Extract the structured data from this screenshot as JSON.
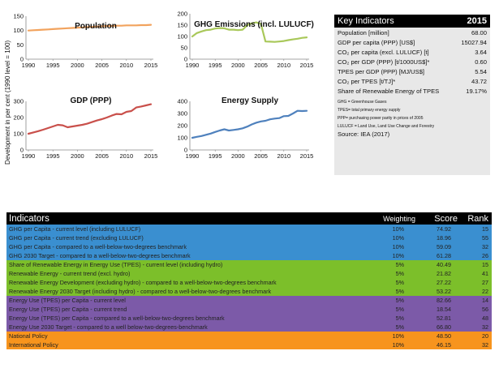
{
  "chart_data": [
    {
      "type": "line",
      "title": "Population",
      "x": [
        1990,
        1991,
        1992,
        1993,
        1994,
        1995,
        1996,
        1997,
        1998,
        1999,
        2000,
        2001,
        2002,
        2003,
        2004,
        2005,
        2006,
        2007,
        2008,
        2009,
        2010,
        2011,
        2012,
        2013,
        2014,
        2015
      ],
      "series": [
        {
          "values": [
            100,
            101,
            102,
            103,
            104,
            105,
            106,
            107,
            108,
            109,
            110,
            111,
            112,
            113,
            114,
            115,
            116,
            116,
            117,
            117,
            118,
            118,
            118,
            119,
            119,
            120
          ]
        }
      ],
      "ylim": [
        0,
        150
      ],
      "yticks": [
        0,
        50,
        100,
        150
      ],
      "xticks": [
        1990,
        1995,
        2000,
        2005,
        2010,
        2015
      ],
      "color": "#f2a35e"
    },
    {
      "type": "line",
      "title": "GHG Emissions (incl. LULUCF)",
      "x": [
        1990,
        1991,
        1992,
        1993,
        1994,
        1995,
        1996,
        1997,
        1998,
        1999,
        2000,
        2001,
        2002,
        2003,
        2004,
        2005,
        2006,
        2007,
        2008,
        2009,
        2010,
        2011,
        2012,
        2013,
        2014,
        2015
      ],
      "series": [
        {
          "values": [
            100,
            115,
            122,
            128,
            130,
            135,
            137,
            136,
            130,
            130,
            128,
            130,
            150,
            158,
            162,
            155,
            78,
            77,
            76,
            78,
            80,
            84,
            87,
            90,
            94,
            96
          ]
        }
      ],
      "ylim": [
        0,
        200
      ],
      "yticks": [
        0,
        50,
        100,
        150,
        200
      ],
      "xticks": [
        1990,
        1995,
        2000,
        2005,
        2010,
        2015
      ],
      "color": "#a9c85a"
    },
    {
      "type": "line",
      "title": "GDP (PPP)",
      "x": [
        1990,
        1991,
        1992,
        1993,
        1994,
        1995,
        1996,
        1997,
        1998,
        1999,
        2000,
        2001,
        2002,
        2003,
        2004,
        2005,
        2006,
        2007,
        2008,
        2009,
        2010,
        2011,
        2012,
        2013,
        2014,
        2015
      ],
      "series": [
        {
          "values": [
            100,
            108,
            116,
            125,
            135,
            145,
            155,
            152,
            140,
            145,
            150,
            155,
            162,
            172,
            182,
            190,
            200,
            212,
            222,
            220,
            235,
            240,
            262,
            268,
            275,
            282
          ]
        }
      ],
      "ylim": [
        0,
        300
      ],
      "yticks": [
        0,
        100,
        200,
        300
      ],
      "xticks": [
        1990,
        1995,
        2000,
        2005,
        2010,
        2015
      ],
      "color": "#c9504b"
    },
    {
      "type": "line",
      "title": "Energy Supply",
      "x": [
        1990,
        1991,
        1992,
        1993,
        1994,
        1995,
        1996,
        1997,
        1998,
        1999,
        2000,
        2001,
        2002,
        2003,
        2004,
        2005,
        2006,
        2007,
        2008,
        2009,
        2010,
        2011,
        2012,
        2013,
        2014,
        2015
      ],
      "series": [
        {
          "values": [
            100,
            108,
            115,
            125,
            135,
            148,
            160,
            170,
            160,
            165,
            170,
            178,
            192,
            210,
            225,
            235,
            240,
            252,
            258,
            262,
            278,
            280,
            300,
            322,
            320,
            322
          ]
        }
      ],
      "ylim": [
        0,
        400
      ],
      "yticks": [
        0,
        100,
        200,
        300,
        400
      ],
      "xticks": [
        1990,
        1995,
        2000,
        2005,
        2010,
        2015
      ],
      "color": "#4f81bd"
    }
  ],
  "y_axis_label": "Development in per cent (1990 level = 100)",
  "key_indicators": {
    "title": "Key Indicators",
    "year": "2015",
    "rows": [
      {
        "label": "Population [million]",
        "value": "68.00"
      },
      {
        "label": "GDP per capita (PPP) [US$]",
        "value": "15027.94"
      },
      {
        "label": "CO₂ per capita (excl. LULUCF) [t]",
        "value": "3.64"
      },
      {
        "label": "CO₂ per GDP (PPP) [t/1000US$]*",
        "value": "0.60"
      },
      {
        "label": "TPES per GDP (PPP) [MJ/US$]",
        "value": "5.54"
      },
      {
        "label": "CO₂ per TPES [t/TJ]*",
        "value": "43.72"
      },
      {
        "label": "Share of Renewable Energy of TPES",
        "value": "19.17%"
      }
    ],
    "notes": [
      "GHG = Greenhouse Gases",
      "TPES= total primary energy supply",
      "PPP= purchasing power parity in prices of 2005",
      "LULUCF = Land Use, Land Use Change and Forestry"
    ],
    "source": "Source: IEA (2017)"
  },
  "indicators": {
    "header": {
      "label": "Indicators",
      "weighting": "Weighting",
      "score": "Score",
      "rank": "Rank"
    },
    "rows": [
      {
        "label": "GHG per Capita - current level (including LULUCF)",
        "weighting": "10%",
        "score": "74.92",
        "rank": "15",
        "color": "#3a8fd0"
      },
      {
        "label": "GHG per Capita - current trend (excluding LULUCF)",
        "weighting": "10%",
        "score": "18.96",
        "rank": "55",
        "color": "#3a8fd0"
      },
      {
        "label": "GHG per Capita - compared to a well-below-two-degrees benchmark",
        "weighting": "10%",
        "score": "59.09",
        "rank": "32",
        "color": "#3a8fd0"
      },
      {
        "label": "GHG 2030 Target - compared to a well-below-two-degrees benchmark",
        "weighting": "10%",
        "score": "61.28",
        "rank": "26",
        "color": "#3a8fd0"
      },
      {
        "label": "Share of Renewable Energy in Energy Use (TPES) - current level (including hydro)",
        "weighting": "5%",
        "score": "40.49",
        "rank": "15",
        "color": "#7cbf2a"
      },
      {
        "label": "Renewable Energy - current trend (excl. hydro)",
        "weighting": "5%",
        "score": "21.82",
        "rank": "41",
        "color": "#7cbf2a"
      },
      {
        "label": "Renewable Energy Development (excluding hydro) - compared to a well-below-two-degrees benchmark",
        "weighting": "5%",
        "score": "27.22",
        "rank": "27",
        "color": "#7cbf2a"
      },
      {
        "label": "Renewable Energy 2030 Target (including hydro) - compared to  a well-below-two-degrees benchmark",
        "weighting": "5%",
        "score": "53.22",
        "rank": "22",
        "color": "#7cbf2a"
      },
      {
        "label": "Energy Use (TPES) per Capita - current level",
        "weighting": "5%",
        "score": "82.66",
        "rank": "14",
        "color": "#7c5aa8"
      },
      {
        "label": "Energy Use (TPES) per Capita - current trend",
        "weighting": "5%",
        "score": "18.54",
        "rank": "56",
        "color": "#7c5aa8"
      },
      {
        "label": "Energy Use (TPES) per Capita - compared to a well-below-two-degrees benchmark",
        "weighting": "5%",
        "score": "52.81",
        "rank": "48",
        "color": "#7c5aa8"
      },
      {
        "label": "Energy Use 2030 Target - compared to  a well below-two-degrees-benchmark",
        "weighting": "5%",
        "score": "66.80",
        "rank": "32",
        "color": "#7c5aa8"
      },
      {
        "label": "National Policy",
        "weighting": "10%",
        "score": "48.50",
        "rank": "20",
        "color": "#f7941d"
      },
      {
        "label": "International Policy",
        "weighting": "10%",
        "score": "46.15",
        "rank": "32",
        "color": "#f7941d"
      }
    ]
  }
}
